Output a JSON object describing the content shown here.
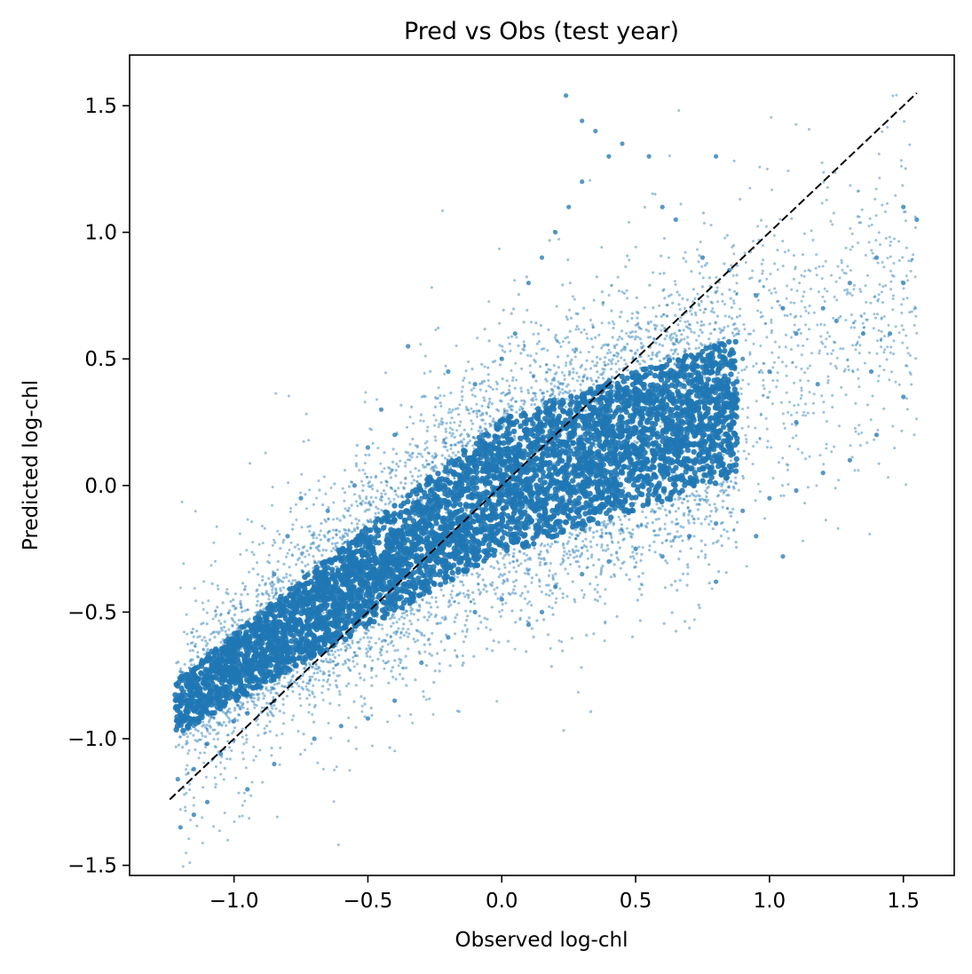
{
  "chart_data": {
    "type": "scatter",
    "title": "Pred vs Obs (test year)",
    "xlabel": "Observed log-chl",
    "ylabel": "Predicted log-chl",
    "xlim": [
      -1.39,
      1.69
    ],
    "ylim": [
      -1.54,
      1.7
    ],
    "xticks": [
      {
        "value": -1.0,
        "label": "−1.0"
      },
      {
        "value": -0.5,
        "label": "−0.5"
      },
      {
        "value": 0.0,
        "label": "0.0"
      },
      {
        "value": 0.5,
        "label": "0.5"
      },
      {
        "value": 1.0,
        "label": "1.0"
      },
      {
        "value": 1.5,
        "label": "1.5"
      }
    ],
    "yticks": [
      {
        "value": -1.5,
        "label": "−1.5"
      },
      {
        "value": -1.0,
        "label": "−1.0"
      },
      {
        "value": -0.5,
        "label": "−0.5"
      },
      {
        "value": 0.0,
        "label": "0.0"
      },
      {
        "value": 0.5,
        "label": "0.5"
      },
      {
        "value": 1.0,
        "label": "1.0"
      },
      {
        "value": 1.5,
        "label": "1.5"
      }
    ],
    "grid": false,
    "legend": "none",
    "point_color": "#1f77b4",
    "reference_line": {
      "style": "dashed",
      "color": "#000000",
      "from": [
        -1.24,
        -1.24
      ],
      "to": [
        1.55,
        1.55
      ]
    },
    "series": [
      {
        "values": [
          {
            "x": -1.21,
            "y": -1.16
          },
          {
            "x": -1.15,
            "y": -1.12
          },
          {
            "x": -1.1,
            "y": -1.02
          },
          {
            "x": -1.05,
            "y": -1.06
          },
          {
            "x": -1.0,
            "y": -0.93
          },
          {
            "x": -0.95,
            "y": -0.9
          },
          {
            "x": -0.9,
            "y": -0.8
          },
          {
            "x": -0.85,
            "y": -0.85
          },
          {
            "x": -0.8,
            "y": -0.7
          },
          {
            "x": -0.75,
            "y": -0.62
          },
          {
            "x": -0.7,
            "y": -0.65
          },
          {
            "x": -0.65,
            "y": -0.5
          },
          {
            "x": -0.6,
            "y": -0.45
          },
          {
            "x": -0.55,
            "y": -0.4
          },
          {
            "x": -0.5,
            "y": -0.3
          },
          {
            "x": -0.45,
            "y": -0.28
          },
          {
            "x": -0.4,
            "y": -0.2
          },
          {
            "x": -0.35,
            "y": -0.1
          },
          {
            "x": -0.3,
            "y": -0.05
          },
          {
            "x": -0.25,
            "y": 0.0
          },
          {
            "x": -0.2,
            "y": 0.05
          },
          {
            "x": -0.15,
            "y": 0.08
          },
          {
            "x": -0.1,
            "y": 0.1
          },
          {
            "x": -0.05,
            "y": 0.05
          },
          {
            "x": 0.0,
            "y": 0.08
          },
          {
            "x": 0.05,
            "y": 0.12
          },
          {
            "x": 0.1,
            "y": 0.1
          },
          {
            "x": 0.15,
            "y": 0.15
          },
          {
            "x": 0.2,
            "y": 0.12
          },
          {
            "x": 0.25,
            "y": 0.2
          },
          {
            "x": 0.3,
            "y": 0.18
          },
          {
            "x": 0.35,
            "y": 0.22
          },
          {
            "x": 0.4,
            "y": 0.25
          },
          {
            "x": 0.45,
            "y": 0.2
          },
          {
            "x": 0.5,
            "y": 0.28
          },
          {
            "x": 0.6,
            "y": 0.3
          },
          {
            "x": 0.7,
            "y": 0.35
          },
          {
            "x": 0.8,
            "y": 0.4
          },
          {
            "x": 0.9,
            "y": 0.5
          },
          {
            "x": 1.0,
            "y": 0.45
          },
          {
            "x": 1.1,
            "y": 0.6
          },
          {
            "x": 1.2,
            "y": 0.7
          },
          {
            "x": 1.3,
            "y": 0.8
          },
          {
            "x": 1.4,
            "y": 0.9
          },
          {
            "x": 1.5,
            "y": 1.1
          },
          {
            "x": 1.55,
            "y": 1.05
          },
          {
            "x": -0.35,
            "y": 0.55
          },
          {
            "x": -0.2,
            "y": 0.45
          },
          {
            "x": -0.1,
            "y": 0.4
          },
          {
            "x": 0.0,
            "y": 0.5
          },
          {
            "x": 0.05,
            "y": 0.6
          },
          {
            "x": 0.1,
            "y": 0.8
          },
          {
            "x": 0.15,
            "y": 0.9
          },
          {
            "x": 0.2,
            "y": 1.0
          },
          {
            "x": 0.25,
            "y": 1.1
          },
          {
            "x": 0.3,
            "y": 1.2
          },
          {
            "x": 0.35,
            "y": 1.4
          },
          {
            "x": 0.4,
            "y": 1.3
          },
          {
            "x": 0.45,
            "y": 1.35
          },
          {
            "x": 0.55,
            "y": 1.3
          },
          {
            "x": 0.6,
            "y": 1.1
          },
          {
            "x": 0.65,
            "y": 1.05
          },
          {
            "x": 0.75,
            "y": 0.9
          },
          {
            "x": 0.8,
            "y": 1.3
          },
          {
            "x": 0.85,
            "y": 0.85
          },
          {
            "x": 0.95,
            "y": 0.75
          },
          {
            "x": 1.05,
            "y": 0.7
          },
          {
            "x": 1.25,
            "y": 0.65
          },
          {
            "x": 1.35,
            "y": 0.6
          },
          {
            "x": 0.24,
            "y": 1.54
          },
          {
            "x": 0.3,
            "y": 1.44
          },
          {
            "x": -0.55,
            "y": 0.0
          },
          {
            "x": -0.65,
            "y": -0.1
          },
          {
            "x": -0.75,
            "y": -0.05
          },
          {
            "x": -0.8,
            "y": -0.2
          },
          {
            "x": -0.85,
            "y": -0.35
          },
          {
            "x": -0.9,
            "y": -0.5
          },
          {
            "x": -0.95,
            "y": -0.7
          },
          {
            "x": -1.05,
            "y": -0.85
          },
          {
            "x": -1.15,
            "y": -0.95
          },
          {
            "x": -0.5,
            "y": 0.15
          },
          {
            "x": -0.45,
            "y": 0.3
          },
          {
            "x": -0.4,
            "y": 0.2
          },
          {
            "x": -1.15,
            "y": -1.3
          },
          {
            "x": -1.2,
            "y": -1.35
          },
          {
            "x": -1.1,
            "y": -1.25
          },
          {
            "x": -0.95,
            "y": -1.2
          },
          {
            "x": -0.85,
            "y": -1.1
          },
          {
            "x": -0.7,
            "y": -1.0
          },
          {
            "x": -0.6,
            "y": -0.95
          },
          {
            "x": -0.5,
            "y": -0.92
          },
          {
            "x": -0.4,
            "y": -0.85
          },
          {
            "x": -0.3,
            "y": -0.7
          },
          {
            "x": -0.2,
            "y": -0.6
          },
          {
            "x": -0.1,
            "y": -0.5
          },
          {
            "x": 0.0,
            "y": -0.45
          },
          {
            "x": 0.1,
            "y": -0.55
          },
          {
            "x": 0.15,
            "y": -0.5
          },
          {
            "x": 0.2,
            "y": -0.4
          },
          {
            "x": 0.3,
            "y": -0.35
          },
          {
            "x": 0.4,
            "y": -0.3
          },
          {
            "x": 0.5,
            "y": -0.25
          },
          {
            "x": 0.6,
            "y": -0.28
          },
          {
            "x": 0.7,
            "y": -0.2
          },
          {
            "x": 0.8,
            "y": -0.15
          },
          {
            "x": 0.9,
            "y": -0.1
          },
          {
            "x": 1.0,
            "y": -0.05
          },
          {
            "x": 1.1,
            "y": -0.02
          },
          {
            "x": 1.2,
            "y": 0.05
          },
          {
            "x": 1.3,
            "y": 0.1
          },
          {
            "x": 1.4,
            "y": 0.2
          },
          {
            "x": 1.5,
            "y": 0.35
          },
          {
            "x": 0.8,
            "y": -0.38
          },
          {
            "x": 1.05,
            "y": -0.28
          },
          {
            "x": 0.95,
            "y": -0.2
          },
          {
            "x": 1.45,
            "y": 0.6
          },
          {
            "x": 1.5,
            "y": 0.8
          },
          {
            "x": 1.38,
            "y": 0.45
          },
          {
            "x": 1.18,
            "y": 0.4
          },
          {
            "x": 1.1,
            "y": 0.25
          }
        ]
      }
    ]
  }
}
